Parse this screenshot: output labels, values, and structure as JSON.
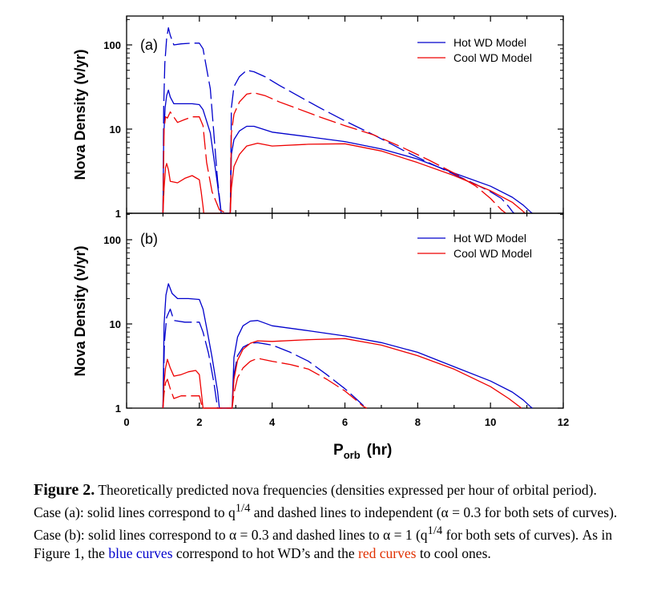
{
  "chart_data": [
    {
      "type": "line",
      "panel_label": "(a)",
      "ylabel": "Nova Density (ν/yr)",
      "xlabel": "",
      "xlim": [
        0,
        12
      ],
      "ylim": [
        1,
        200
      ],
      "y_scale": "log",
      "x_ticks": [],
      "y_ticks": [
        "1",
        "10",
        "100"
      ],
      "legend": {
        "position": "top-right",
        "entries": [
          {
            "label": "Hot WD Model",
            "color": "#0000cc"
          },
          {
            "label": "Cool WD Model",
            "color": "#ee0000"
          }
        ]
      },
      "series": [
        {
          "color": "#0000cc",
          "style": "dashed",
          "x": [
            1.0,
            1.02,
            1.05,
            1.1,
            1.15,
            1.2,
            1.3,
            1.5,
            1.8,
            2.0,
            2.1,
            2.3,
            2.5,
            2.6,
            2.75,
            2.85,
            2.88,
            2.95,
            3.1,
            3.3,
            3.5,
            3.8,
            4.2,
            4.7,
            5.3,
            6.0,
            6.8,
            7.6,
            8.3,
            9.0,
            9.6,
            10.0,
            10.3,
            10.5,
            10.6,
            10.65
          ],
          "y": [
            1.0,
            18,
            60,
            120,
            160,
            130,
            100,
            103,
            105,
            105,
            90,
            30,
            2.5,
            1.0,
            1.0,
            1.0,
            18,
            32,
            42,
            50,
            48,
            42,
            33,
            25,
            18,
            12.5,
            8.5,
            5.6,
            4.0,
            2.9,
            2.2,
            1.8,
            1.5,
            1.2,
            1.05,
            1.0
          ]
        },
        {
          "color": "#0000cc",
          "style": "solid",
          "x": [
            1.0,
            1.02,
            1.06,
            1.1,
            1.15,
            1.2,
            1.3,
            1.5,
            1.8,
            2.0,
            2.1,
            2.3,
            2.5,
            2.6,
            2.75,
            2.85,
            2.88,
            2.95,
            3.1,
            3.3,
            3.5,
            4.0,
            5.0,
            6.0,
            7.0,
            8.0,
            9.0,
            10.0,
            10.6,
            10.9,
            11.1,
            11.15
          ],
          "y": [
            1.0,
            8,
            18,
            25,
            29,
            24,
            20,
            20,
            20,
            19.5,
            17,
            9,
            2.2,
            1.0,
            1.0,
            1.0,
            5,
            7.5,
            9.5,
            10.8,
            10.8,
            9.2,
            8.1,
            7.1,
            5.8,
            4.4,
            3.0,
            2.1,
            1.55,
            1.25,
            1.04,
            1.0
          ]
        },
        {
          "color": "#ee0000",
          "style": "dashed",
          "x": [
            1.0,
            1.03,
            1.07,
            1.12,
            1.2,
            1.4,
            1.6,
            1.8,
            2.0,
            2.1,
            2.2,
            2.35,
            2.55,
            2.75,
            2.85,
            2.88,
            2.95,
            3.1,
            3.3,
            3.5,
            3.8,
            4.2,
            4.7,
            5.3,
            6.0,
            6.8,
            7.6,
            8.3,
            9.0,
            9.6,
            10.0,
            10.3,
            10.4,
            10.42
          ],
          "y": [
            1.0,
            10,
            14,
            13.5,
            16,
            12,
            13,
            14,
            14,
            11,
            4,
            1.8,
            1.1,
            1.0,
            1.0,
            9,
            15,
            21,
            26,
            27,
            25,
            21,
            17.5,
            14,
            11,
            8.5,
            6.0,
            4.3,
            3.0,
            2.1,
            1.5,
            1.1,
            1.02,
            1.0
          ]
        },
        {
          "color": "#ee0000",
          "style": "solid",
          "x": [
            1.0,
            1.03,
            1.07,
            1.1,
            1.15,
            1.2,
            1.4,
            1.6,
            1.8,
            2.0,
            2.05,
            2.1,
            2.12,
            2.85,
            2.88,
            2.95,
            3.1,
            3.3,
            3.6,
            4.0,
            5.0,
            6.0,
            7.0,
            8.0,
            9.0,
            10.0,
            10.6,
            10.85,
            10.95
          ],
          "y": [
            1.0,
            2,
            3.5,
            3.9,
            3.3,
            2.4,
            2.3,
            2.6,
            2.8,
            2.5,
            1.8,
            1.2,
            1.0,
            1.0,
            2,
            3.6,
            5.0,
            6.3,
            6.8,
            6.3,
            6.6,
            6.7,
            5.5,
            4.0,
            2.8,
            1.85,
            1.35,
            1.1,
            1.0
          ]
        }
      ]
    },
    {
      "type": "line",
      "panel_label": "(b)",
      "ylabel": "Nova Density (ν/yr)",
      "xlabel": "P_orb (hr)",
      "xlim": [
        0,
        12
      ],
      "ylim": [
        1,
        200
      ],
      "y_scale": "log",
      "x_ticks": [
        "0",
        "2",
        "4",
        "6",
        "8",
        "10",
        "12"
      ],
      "y_ticks": [
        "1",
        "10",
        "100"
      ],
      "legend": {
        "position": "top-right",
        "entries": [
          {
            "label": "Hot WD Model",
            "color": "#0000cc"
          },
          {
            "label": "Cool WD Model",
            "color": "#ee0000"
          }
        ]
      },
      "series": [
        {
          "color": "#0000cc",
          "style": "solid",
          "x": [
            1.0,
            1.03,
            1.08,
            1.15,
            1.25,
            1.4,
            1.7,
            2.0,
            2.1,
            2.2,
            2.35,
            2.5,
            2.55,
            2.9,
            2.95,
            3.05,
            3.2,
            3.4,
            3.6,
            4.0,
            5.0,
            6.0,
            7.0,
            8.0,
            9.0,
            10.0,
            10.6,
            10.9,
            11.1,
            11.15
          ],
          "y": [
            1.0,
            10,
            22,
            30,
            23,
            20,
            20,
            19.5,
            15,
            9,
            4,
            1.6,
            1.0,
            1.0,
            4,
            7,
            9.5,
            10.8,
            11,
            9.5,
            8.3,
            7.2,
            6.0,
            4.6,
            3.1,
            2.1,
            1.55,
            1.25,
            1.04,
            1.0
          ]
        },
        {
          "color": "#0000cc",
          "style": "dashed",
          "x": [
            1.0,
            1.04,
            1.1,
            1.2,
            1.3,
            1.6,
            1.9,
            2.0,
            2.1,
            2.25,
            2.4,
            2.5,
            2.9,
            2.95,
            3.05,
            3.2,
            3.4,
            3.6,
            4.0,
            4.5,
            5.0,
            5.5,
            6.0,
            6.3,
            6.5,
            6.6
          ],
          "y": [
            1.0,
            6,
            12,
            15,
            11,
            10.5,
            10.5,
            10.5,
            8,
            4.5,
            2.0,
            1.0,
            1.0,
            2.5,
            4.2,
            5.3,
            5.9,
            6.0,
            5.6,
            4.6,
            3.6,
            2.5,
            1.7,
            1.3,
            1.08,
            1.0
          ]
        },
        {
          "color": "#ee0000",
          "style": "solid",
          "x": [
            1.0,
            1.03,
            1.07,
            1.12,
            1.2,
            1.3,
            1.5,
            1.7,
            1.9,
            2.0,
            2.05,
            2.1,
            2.9,
            2.95,
            3.05,
            3.2,
            3.4,
            3.6,
            4.0,
            5.0,
            6.0,
            7.0,
            8.0,
            9.0,
            10.0,
            10.5,
            10.75,
            10.85
          ],
          "y": [
            1.0,
            2,
            3.0,
            3.8,
            3.0,
            2.4,
            2.5,
            2.7,
            2.8,
            2.5,
            1.6,
            1.0,
            1.0,
            2.2,
            3.7,
            5.0,
            5.9,
            6.3,
            6.2,
            6.5,
            6.7,
            5.6,
            4.2,
            2.9,
            1.8,
            1.3,
            1.08,
            1.0
          ]
        },
        {
          "color": "#ee0000",
          "style": "dashed",
          "x": [
            1.0,
            1.03,
            1.07,
            1.12,
            1.2,
            1.3,
            1.5,
            1.8,
            2.0,
            2.05,
            2.1,
            2.9,
            2.95,
            3.05,
            3.2,
            3.4,
            3.6,
            4.0,
            4.5,
            5.0,
            5.5,
            6.0,
            6.3,
            6.5,
            6.6
          ],
          "y": [
            1.0,
            1.5,
            2.0,
            2.2,
            1.7,
            1.3,
            1.4,
            1.4,
            1.4,
            1.15,
            1.0,
            1.0,
            1.5,
            2.3,
            3.0,
            3.6,
            3.9,
            3.6,
            3.3,
            2.9,
            2.2,
            1.6,
            1.25,
            1.05,
            1.0
          ]
        }
      ]
    }
  ],
  "caption": {
    "fig_label": "Figure 2.",
    "text_1": "  Theoretically predicted nova frequencies (densities expressed per hour of orbital period).  Case (a): solid lines correspond to q",
    "sup_1": "1/4",
    "text_2": " and dashed lines to independent  (α = 0.3 for both sets of curves). Case (b): solid lines correspond to α = 0.3 and dashed lines to α = 1 (q",
    "sup_2": "1/4",
    "text_3": " for both sets of curves).  As in Figure 1, the ",
    "blue_text": "blue curves",
    "text_4": " correspond to hot WD’s and the ",
    "red_text": "red curves",
    "text_5": " to cool ones."
  },
  "colors": {
    "hot": "#0000cc",
    "cool": "#ee0000"
  }
}
